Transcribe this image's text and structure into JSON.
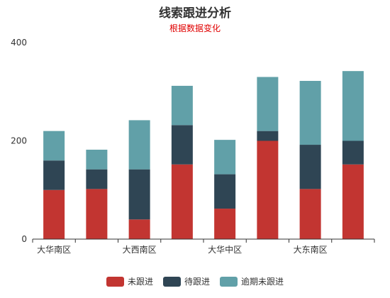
{
  "colors": {
    "follow_none": "#c23531",
    "follow_pending": "#2f4554",
    "follow_overdue": "#61a0a8",
    "axis": "#333333"
  },
  "chart_data": {
    "type": "bar",
    "stacked": true,
    "title": "线索跟进分析",
    "subtitle": "根据数据变化",
    "categories": [
      "大华南区",
      "",
      "大西南区",
      "",
      "大华中区",
      "",
      "大东南区",
      ""
    ],
    "y_ticks": [
      0,
      200,
      400
    ],
    "ylim": [
      0,
      400
    ],
    "series": [
      {
        "name": "未跟进",
        "values": [
          100,
          102,
          40,
          152,
          62,
          200,
          102,
          152
        ]
      },
      {
        "name": "待跟进",
        "values": [
          60,
          40,
          102,
          80,
          70,
          20,
          90,
          48
        ]
      },
      {
        "name": "逾期未跟进",
        "values": [
          60,
          40,
          100,
          80,
          70,
          110,
          130,
          142
        ]
      }
    ],
    "legend_position": "bottom-center",
    "grid": false
  }
}
